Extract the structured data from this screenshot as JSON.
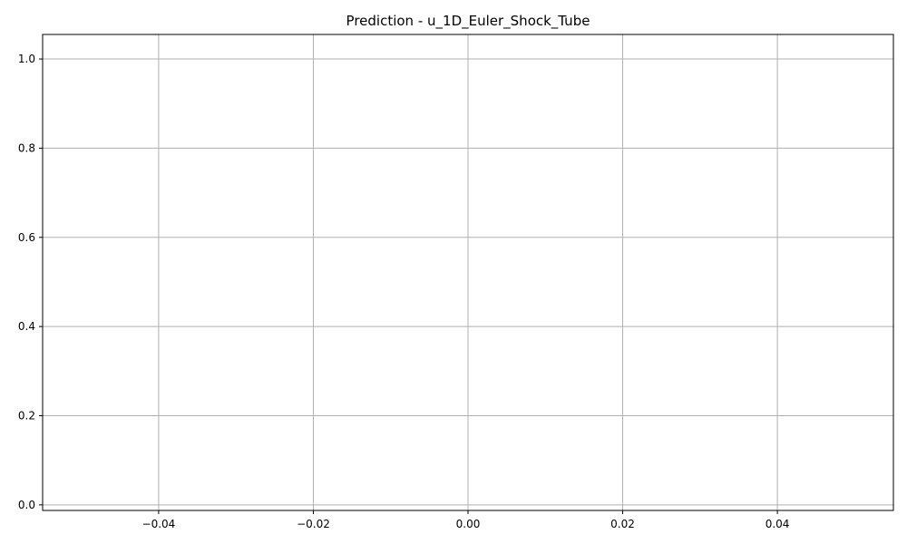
{
  "chart_data": {
    "type": "line",
    "title": "Prediction - u_1D_Euler_Shock_Tube",
    "xlabel": "",
    "ylabel": "",
    "xlim": [
      -0.055,
      0.055
    ],
    "ylim": [
      -0.0125,
      1.055
    ],
    "x_ticks": [
      -0.04,
      -0.02,
      0.0,
      0.02,
      0.04
    ],
    "x_tick_labels": [
      "−0.04",
      "−0.02",
      "0.00",
      "0.02",
      "0.04"
    ],
    "y_ticks": [
      0.0,
      0.2,
      0.4,
      0.6,
      0.8,
      1.0
    ],
    "y_tick_labels": [
      "0.0",
      "0.2",
      "0.4",
      "0.6",
      "0.8",
      "1.0"
    ],
    "grid": true,
    "series": [],
    "colors": {
      "grid": "#b0b0b0",
      "axes": "#000000",
      "background": "#ffffff"
    }
  }
}
